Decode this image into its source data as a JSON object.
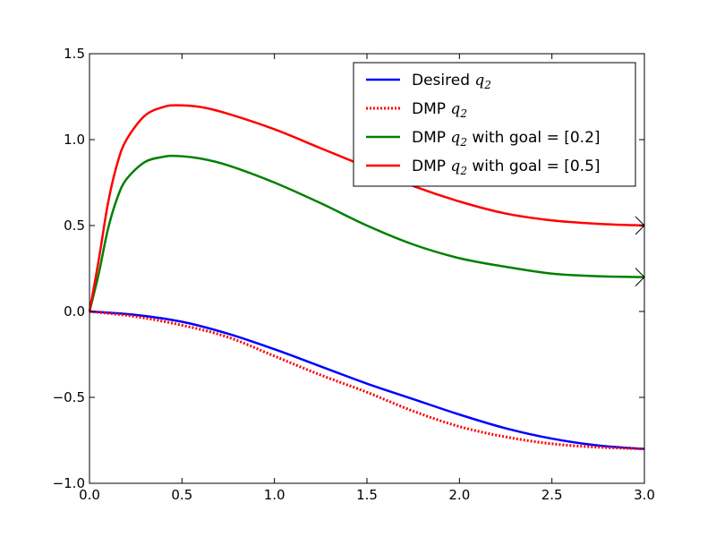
{
  "chart_data": {
    "type": "line",
    "title": "",
    "xlabel": "",
    "ylabel": "",
    "xlim": [
      0.0,
      3.0
    ],
    "ylim": [
      -1.0,
      1.5
    ],
    "xticks": [
      0.0,
      0.5,
      1.0,
      1.5,
      2.0,
      2.5,
      3.0
    ],
    "xtick_labels": [
      "0.0",
      "0.5",
      "1.0",
      "1.5",
      "2.0",
      "2.5",
      "3.0"
    ],
    "yticks": [
      -1.0,
      -0.5,
      0.0,
      0.5,
      1.0,
      1.5
    ],
    "ytick_labels": [
      "−1.0",
      "−0.5",
      "0.0",
      "0.5",
      "1.0",
      "1.5"
    ],
    "grid": false,
    "legend_position": "top-right",
    "series": [
      {
        "name_prefix": "Desired ",
        "name_math": "q",
        "name_sub": "2",
        "name_suffix": "",
        "color": "#0000ff",
        "style": "solid",
        "x": [
          0.0,
          0.25,
          0.5,
          0.75,
          1.0,
          1.25,
          1.5,
          1.75,
          2.0,
          2.25,
          2.5,
          2.75,
          3.0
        ],
        "y": [
          0.0,
          -0.02,
          -0.06,
          -0.13,
          -0.22,
          -0.32,
          -0.42,
          -0.51,
          -0.6,
          -0.68,
          -0.74,
          -0.78,
          -0.8
        ]
      },
      {
        "name_prefix": "DMP ",
        "name_math": "q",
        "name_sub": "2",
        "name_suffix": "",
        "color": "#ff0000",
        "style": "dotted",
        "x": [
          0.0,
          0.25,
          0.5,
          0.75,
          1.0,
          1.25,
          1.5,
          1.75,
          2.0,
          2.25,
          2.5,
          2.75,
          3.0
        ],
        "y": [
          0.0,
          -0.03,
          -0.08,
          -0.15,
          -0.26,
          -0.37,
          -0.47,
          -0.58,
          -0.67,
          -0.73,
          -0.77,
          -0.79,
          -0.8
        ]
      },
      {
        "name_prefix": "DMP ",
        "name_math": "q",
        "name_sub": "2",
        "name_suffix": " with goal = [0.2]",
        "color": "#008000",
        "style": "solid",
        "x": [
          0.0,
          0.05,
          0.1,
          0.15,
          0.2,
          0.3,
          0.4,
          0.47,
          0.6,
          0.75,
          1.0,
          1.25,
          1.5,
          1.75,
          2.0,
          2.25,
          2.5,
          2.75,
          3.0
        ],
        "y": [
          0.0,
          0.22,
          0.48,
          0.66,
          0.77,
          0.87,
          0.9,
          0.905,
          0.89,
          0.85,
          0.75,
          0.63,
          0.5,
          0.39,
          0.31,
          0.26,
          0.22,
          0.205,
          0.2
        ]
      },
      {
        "name_prefix": "DMP ",
        "name_math": "q",
        "name_sub": "2",
        "name_suffix": " with goal = [0.5]",
        "color": "#ff0000",
        "style": "solid",
        "x": [
          0.0,
          0.05,
          0.1,
          0.15,
          0.2,
          0.3,
          0.4,
          0.47,
          0.6,
          0.75,
          1.0,
          1.25,
          1.5,
          1.75,
          2.0,
          2.25,
          2.5,
          2.75,
          3.0
        ],
        "y": [
          0.0,
          0.3,
          0.63,
          0.86,
          1.0,
          1.14,
          1.19,
          1.2,
          1.19,
          1.15,
          1.06,
          0.95,
          0.84,
          0.73,
          0.64,
          0.57,
          0.53,
          0.51,
          0.5
        ]
      }
    ],
    "annotations": [
      {
        "type": "arrow",
        "x": 3.0,
        "y": 0.5,
        "color": "#000000"
      },
      {
        "type": "arrow",
        "x": 3.0,
        "y": 0.2,
        "color": "#000000"
      }
    ]
  }
}
